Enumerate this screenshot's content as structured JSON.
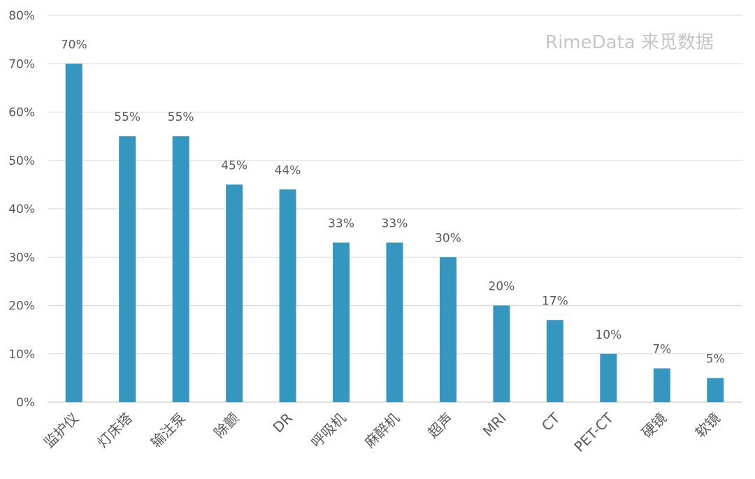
{
  "chart_data": {
    "type": "bar",
    "categories": [
      "监护仪",
      "灯床塔",
      "输注泵",
      "除颤",
      "DR",
      "呼吸机",
      "麻醉机",
      "超声",
      "MRI",
      "CT",
      "PET-CT",
      "硬镜",
      "软镜"
    ],
    "values": [
      70,
      55,
      55,
      45,
      44,
      33,
      33,
      30,
      20,
      17,
      10,
      7,
      5
    ],
    "data_labels": [
      "70%",
      "55%",
      "55%",
      "45%",
      "44%",
      "33%",
      "33%",
      "30%",
      "20%",
      "17%",
      "10%",
      "7%",
      "5%"
    ],
    "ylim": [
      0,
      80
    ],
    "yticks": [
      "0%",
      "10%",
      "20%",
      "30%",
      "40%",
      "50%",
      "60%",
      "70%",
      "80%"
    ],
    "grid": true,
    "bar_color": "#3597c0",
    "title": "",
    "xlabel": "",
    "ylabel": ""
  },
  "watermark": "RimeData 来觅数据"
}
